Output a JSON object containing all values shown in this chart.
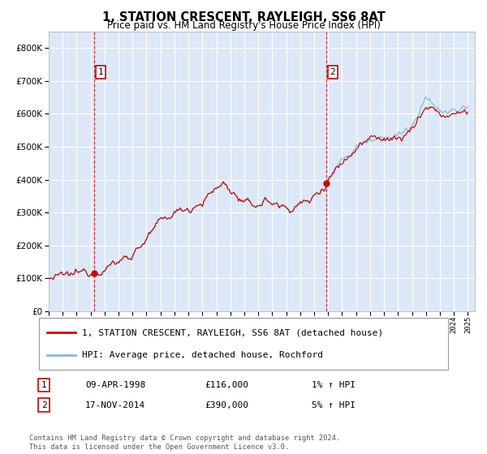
{
  "title": "1, STATION CRESCENT, RAYLEIGH, SS6 8AT",
  "subtitle": "Price paid vs. HM Land Registry's House Price Index (HPI)",
  "legend_line1": "1, STATION CRESCENT, RAYLEIGH, SS6 8AT (detached house)",
  "legend_line2": "HPI: Average price, detached house, Rochford",
  "annotation1_label": "1",
  "annotation1_date": "09-APR-1998",
  "annotation1_price": "£116,000",
  "annotation1_hpi": "1% ↑ HPI",
  "annotation2_label": "2",
  "annotation2_date": "17-NOV-2014",
  "annotation2_price": "£390,000",
  "annotation2_hpi": "5% ↑ HPI",
  "footer": "Contains HM Land Registry data © Crown copyright and database right 2024.\nThis data is licensed under the Open Government Licence v3.0.",
  "purchase1_year": 1998.27,
  "purchase1_value": 116000,
  "purchase2_year": 2014.88,
  "purchase2_value": 390000,
  "vline1_year": 1998.27,
  "vline2_year": 2014.88,
  "ylim": [
    0,
    850000
  ],
  "xlim_start": 1995.0,
  "xlim_end": 2025.5,
  "bg_color": "#dce8f8",
  "red_color": "#cc0000",
  "blue_color": "#85b8d8",
  "grid_color": "#ffffff",
  "vline_color": "#cc0000",
  "marker_color": "#cc0000",
  "num_months": 361
}
